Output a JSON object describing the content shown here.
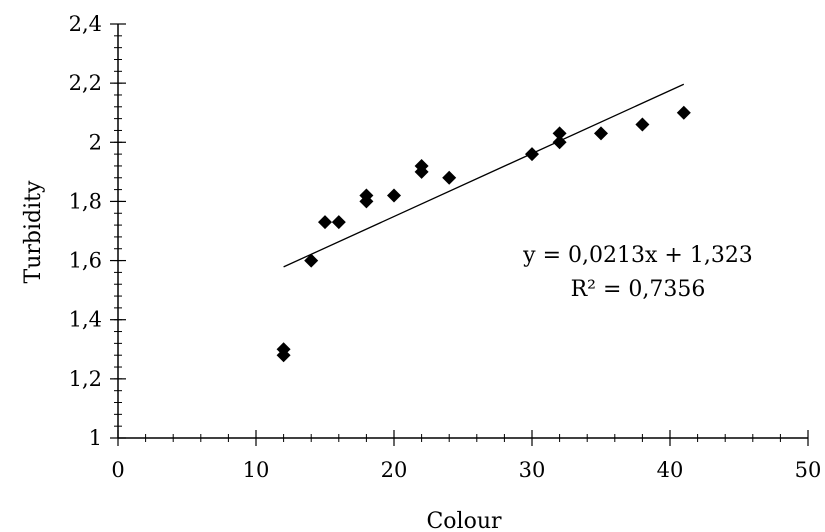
{
  "chart_data": {
    "type": "scatter",
    "xlabel": "Colour",
    "ylabel": "Turbidity",
    "xlim": [
      0,
      50
    ],
    "ylim": [
      1,
      2.4
    ],
    "x_ticks": [
      0,
      10,
      20,
      30,
      40,
      50
    ],
    "x_tick_labels": [
      "0",
      "10",
      "20",
      "30",
      "40",
      "50"
    ],
    "y_ticks": [
      1,
      1.2,
      1.4,
      1.6,
      1.8,
      2,
      2.2,
      2.4
    ],
    "y_tick_labels": [
      "1",
      "1,2",
      "1,4",
      "1,6",
      "1,8",
      "2",
      "2,2",
      "2,4"
    ],
    "x_minor_step": 2,
    "y_minor_step": 0.04,
    "grid": false,
    "legend": "none",
    "marker": "diamond",
    "marker_color": "#000000",
    "points": [
      {
        "x": 12,
        "y": 1.3
      },
      {
        "x": 12,
        "y": 1.28
      },
      {
        "x": 14,
        "y": 1.6
      },
      {
        "x": 15,
        "y": 1.73
      },
      {
        "x": 16,
        "y": 1.73
      },
      {
        "x": 18,
        "y": 1.82
      },
      {
        "x": 18,
        "y": 1.8
      },
      {
        "x": 20,
        "y": 1.82
      },
      {
        "x": 22,
        "y": 1.92
      },
      {
        "x": 22,
        "y": 1.9
      },
      {
        "x": 24,
        "y": 1.88
      },
      {
        "x": 30,
        "y": 1.96
      },
      {
        "x": 32,
        "y": 2.03
      },
      {
        "x": 32,
        "y": 2.0
      },
      {
        "x": 35,
        "y": 2.03
      },
      {
        "x": 38,
        "y": 2.06
      },
      {
        "x": 41,
        "y": 2.1
      }
    ],
    "trendline": {
      "type": "linear",
      "slope": 0.0213,
      "intercept": 1.323,
      "x_range": [
        12,
        41
      ],
      "color": "#000000"
    },
    "annotations": {
      "equation": "y = 0,0213x + 1,323",
      "r_squared": "R² = 0,7356"
    }
  }
}
